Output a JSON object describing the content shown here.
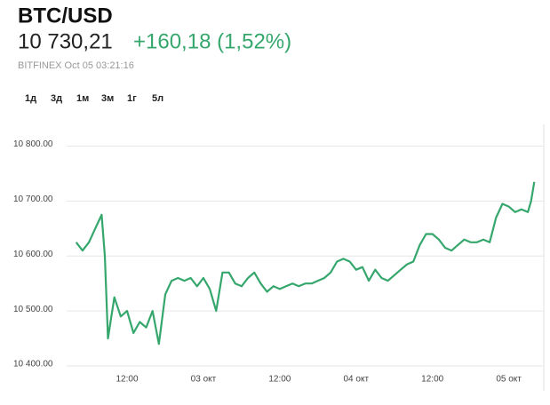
{
  "chart_data": {
    "type": "line",
    "title": "BTC/USD",
    "price": "10 730,21",
    "change": "+160,18 (1,52%)",
    "source": "BITFINEX Oct 05 03:21:16",
    "tabs": [
      "1д",
      "3д",
      "1м",
      "3м",
      "1г",
      "5л"
    ],
    "active_tab": 1,
    "color": "#35a76c",
    "xlim": [
      2.5,
      77.5
    ],
    "ylim": [
      10400,
      10830
    ],
    "xticks": [
      {
        "value": 12,
        "label": "12:00"
      },
      {
        "value": 24,
        "label": "03 окт"
      },
      {
        "value": 36,
        "label": "12:00"
      },
      {
        "value": 48,
        "label": "04 окт"
      },
      {
        "value": 60,
        "label": "12:00"
      },
      {
        "value": 72,
        "label": "05 окт"
      }
    ],
    "yticks": [
      {
        "value": 10400,
        "label": "10 400.00"
      },
      {
        "value": 10500,
        "label": "10 500.00"
      },
      {
        "value": 10600,
        "label": "10 600.00"
      },
      {
        "value": 10700,
        "label": "10 700.00"
      },
      {
        "value": 10800,
        "label": "10 800.00"
      }
    ],
    "grid": true,
    "x": [
      4,
      5,
      6,
      7,
      8,
      8.5,
      9,
      10,
      11,
      12,
      13,
      14,
      15,
      16,
      17,
      18,
      19,
      20,
      21,
      22,
      23,
      24,
      25,
      26,
      27,
      28,
      29,
      30,
      31,
      32,
      33,
      34,
      35,
      36,
      37,
      38,
      39,
      40,
      41,
      42,
      43,
      44,
      45,
      46,
      47,
      48,
      49,
      50,
      51,
      52,
      53,
      54,
      55,
      56,
      57,
      58,
      59,
      60,
      61,
      62,
      63,
      64,
      65,
      66,
      67,
      68,
      69,
      70,
      71,
      72,
      73,
      74,
      75,
      75.5,
      76
    ],
    "values": [
      10625,
      10610,
      10625,
      10650,
      10675,
      10600,
      10450,
      10525,
      10490,
      10500,
      10460,
      10480,
      10470,
      10500,
      10440,
      10530,
      10555,
      10560,
      10555,
      10560,
      10545,
      10560,
      10540,
      10500,
      10570,
      10570,
      10550,
      10545,
      10560,
      10570,
      10550,
      10535,
      10545,
      10540,
      10545,
      10550,
      10545,
      10550,
      10550,
      10555,
      10560,
      10570,
      10590,
      10595,
      10590,
      10575,
      10580,
      10555,
      10575,
      10560,
      10555,
      10565,
      10575,
      10585,
      10590,
      10620,
      10640,
      10640,
      10630,
      10615,
      10610,
      10620,
      10630,
      10625,
      10625,
      10630,
      10625,
      10670,
      10695,
      10690,
      10680,
      10685,
      10680,
      10700,
      10735
    ]
  }
}
